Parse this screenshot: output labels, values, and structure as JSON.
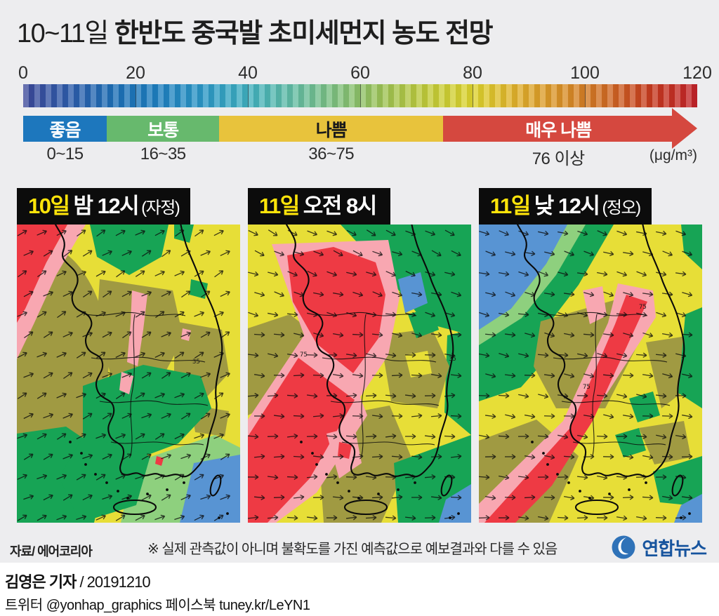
{
  "title": {
    "prefix": "10~11일",
    "main": " 한반도 중국발 초미세먼지 농도 전망"
  },
  "colorbar": {
    "ticks": [
      "0",
      "20",
      "40",
      "60",
      "80",
      "100",
      "120"
    ],
    "tick_values": [
      0,
      20,
      40,
      60,
      80,
      100,
      120
    ],
    "max": 120,
    "gradient": [
      "#3d4899",
      "#2e5cab",
      "#1e6fb6",
      "#1e7fc0",
      "#2b97c6",
      "#3fb0c0",
      "#62bca4",
      "#7fc07b",
      "#9cc254",
      "#c1ca38",
      "#ddd32c",
      "#dfae2b",
      "#d98f27",
      "#cf6a24",
      "#c6391f",
      "#c2232a"
    ],
    "unit": "(μg/m³)"
  },
  "categories": [
    {
      "label": "좋음",
      "range": "0~15",
      "color": "#1d77bd",
      "text_color": "#ffffff",
      "width_pct": 12.4
    },
    {
      "label": "보통",
      "range": "16~35",
      "color": "#67b96d",
      "text_color": "#ffffff",
      "width_pct": 16.7
    },
    {
      "label": "나쁨",
      "range": "36~75",
      "color": "#e8c33c",
      "text_color": "#1a1a1a",
      "width_pct": 33.2
    },
    {
      "label": "매우 나쁨",
      "range": "76 이상",
      "color": "#d5483f",
      "text_color": "#ffffff",
      "width_pct": 34.2
    }
  ],
  "panels": [
    {
      "day": "10일",
      "time": "밤 12시",
      "note": "(자정)",
      "wind": "northeast"
    },
    {
      "day": "11일",
      "time": "오전 8시",
      "note": "",
      "wind": "east"
    },
    {
      "day": "11일",
      "time": "낮 12시",
      "note": "(정오)",
      "wind": "east-southeast"
    }
  ],
  "map_values": [
    "35",
    "75"
  ],
  "map_palette": {
    "yellow": "#e7de37",
    "olive": "#a09a42",
    "green": "#17a455",
    "light_green": "#8ed07e",
    "blue": "#5894d3",
    "red": "#ee3a44",
    "pink": "#f8a7b1"
  },
  "footer": {
    "source": "자료/ 에어코리아",
    "disclaimer": "※ 실제 관측값이 아니며 불확도를 가진 예측값으로 예보결과와 다를 수 있음",
    "brand": "연합뉴스"
  },
  "byline": {
    "reporter": "김영은 기자",
    "date": " / 20191210",
    "social": "트위터 @yonhap_graphics  페이스북 tuney.kr/LeYN1"
  }
}
